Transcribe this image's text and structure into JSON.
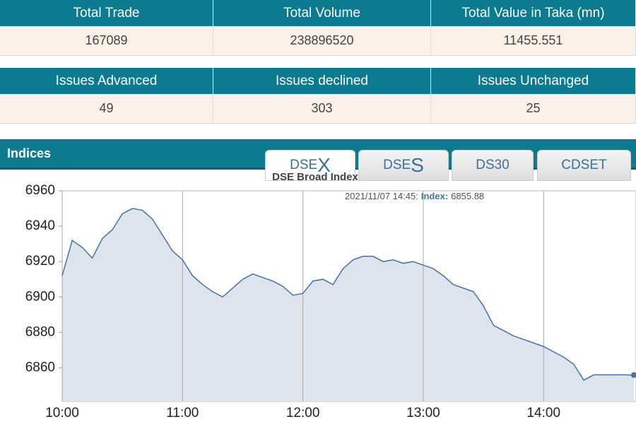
{
  "summary": {
    "headers": [
      "Total Trade",
      "Total Volume",
      "Total Value in Taka (mn)"
    ],
    "values": [
      167089,
      238896520,
      11455.551
    ]
  },
  "issues": {
    "headers": [
      "Issues Advanced",
      "Issues declined",
      "Issues Unchanged"
    ],
    "values": [
      49,
      303,
      25
    ]
  },
  "indices": {
    "heading": "Indices",
    "tabs": [
      {
        "label": "DSE",
        "accent": "X"
      },
      {
        "label": "DSE",
        "accent": "S"
      },
      {
        "label": "DS30"
      },
      {
        "label": "CDSET"
      }
    ]
  },
  "chart_data": {
    "type": "area",
    "title": "DSE Broad Index",
    "tooltip": {
      "time": "2021/11/07 14:45:",
      "key": "Index:",
      "value": 6855.88
    },
    "x": [
      "10:00",
      "10:05",
      "10:10",
      "10:15",
      "10:20",
      "10:25",
      "10:30",
      "10:35",
      "10:40",
      "10:45",
      "10:50",
      "10:55",
      "11:00",
      "11:05",
      "11:10",
      "11:15",
      "11:20",
      "11:25",
      "11:30",
      "11:35",
      "11:40",
      "11:45",
      "11:50",
      "11:55",
      "12:00",
      "12:05",
      "12:10",
      "12:15",
      "12:20",
      "12:25",
      "12:30",
      "12:35",
      "12:40",
      "12:45",
      "12:50",
      "12:55",
      "13:00",
      "13:05",
      "13:10",
      "13:15",
      "13:20",
      "13:25",
      "13:30",
      "13:35",
      "13:40",
      "13:45",
      "13:50",
      "13:55",
      "14:00",
      "14:05",
      "14:10",
      "14:15",
      "14:20",
      "14:25",
      "14:30",
      "14:35",
      "14:40",
      "14:45"
    ],
    "values": [
      6912,
      6932,
      6928,
      6922,
      6933,
      6938,
      6947,
      6950,
      6949,
      6944,
      6935,
      6926,
      6921,
      6912,
      6907,
      6903,
      6900,
      6905,
      6910,
      6913,
      6911,
      6909,
      6906,
      6901,
      6902,
      6909,
      6910,
      6907,
      6916,
      6921,
      6923,
      6923,
      6920,
      6921,
      6919,
      6920,
      6918,
      6916,
      6912,
      6907,
      6905,
      6903,
      6895,
      6884,
      6881,
      6878,
      6876,
      6874,
      6872,
      6869,
      6866,
      6862,
      6853,
      6856,
      6856,
      6856,
      6856,
      6855.88
    ],
    "color": "#4572a7",
    "fill": "#dde4ee",
    "xlim": [
      "10:00",
      "14:45"
    ],
    "xticks": [
      "10:00",
      "11:00",
      "12:00",
      "13:00",
      "14:00"
    ],
    "ylim": [
      6841,
      6960
    ],
    "yticks": [
      6860,
      6880,
      6900,
      6920,
      6940,
      6960
    ],
    "grid": true
  }
}
